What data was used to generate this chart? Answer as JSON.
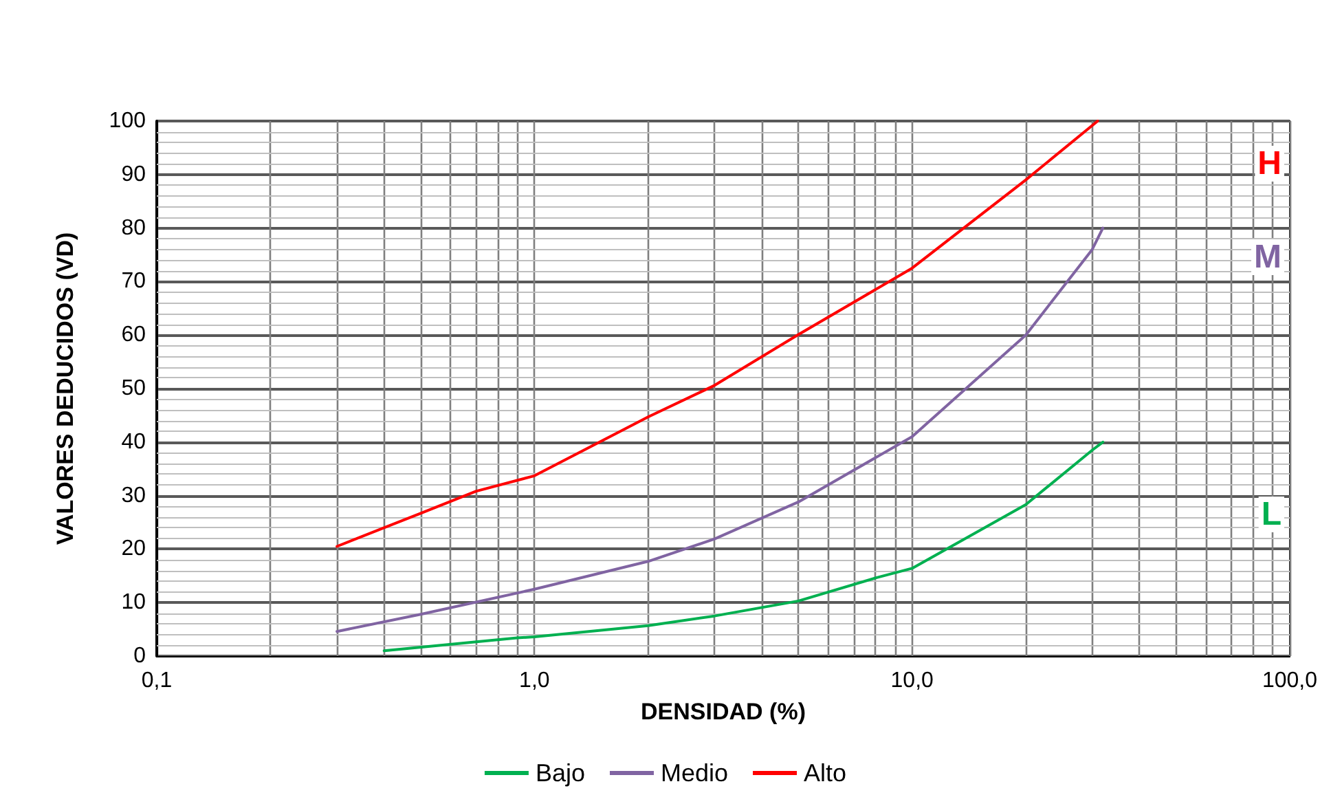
{
  "chart_data": {
    "type": "line",
    "xlabel": "DENSIDAD (%)",
    "ylabel": "VALORES DEDUCIDOS (VD)",
    "log": "x",
    "grid": true,
    "legend": "bottom",
    "marker": "none",
    "line_style": "solid",
    "xlim": [
      0.1,
      100
    ],
    "ylim": [
      0,
      100
    ],
    "xticks": [
      {
        "value": 0.1,
        "label": "0,1"
      },
      {
        "value": 0.2,
        "label": null
      },
      {
        "value": 0.3,
        "label": null
      },
      {
        "value": 0.4,
        "label": null
      },
      {
        "value": 0.5,
        "label": null
      },
      {
        "value": 0.6,
        "label": null
      },
      {
        "value": 0.7,
        "label": null
      },
      {
        "value": 0.8,
        "label": null
      },
      {
        "value": 0.9,
        "label": null
      },
      {
        "value": 1,
        "label": "1,0"
      },
      {
        "value": 2,
        "label": null
      },
      {
        "value": 3,
        "label": null
      },
      {
        "value": 4,
        "label": null
      },
      {
        "value": 5,
        "label": null
      },
      {
        "value": 6,
        "label": null
      },
      {
        "value": 7,
        "label": null
      },
      {
        "value": 8,
        "label": null
      },
      {
        "value": 9,
        "label": null
      },
      {
        "value": 10,
        "label": "10,0"
      },
      {
        "value": 20,
        "label": null
      },
      {
        "value": 30,
        "label": null
      },
      {
        "value": 40,
        "label": null
      },
      {
        "value": 50,
        "label": null
      },
      {
        "value": 60,
        "label": null
      },
      {
        "value": 70,
        "label": null
      },
      {
        "value": 80,
        "label": null
      },
      {
        "value": 90,
        "label": null
      },
      {
        "value": 100,
        "label": "100,0"
      }
    ],
    "yticks": [
      0,
      10,
      20,
      30,
      40,
      50,
      60,
      70,
      80,
      90,
      100
    ],
    "series": [
      {
        "name": "Bajo",
        "color": "#00b050",
        "x": [
          0.4,
          0.9,
          1,
          2,
          3,
          5,
          8,
          10,
          20,
          30,
          32
        ],
        "values": [
          1,
          3.4,
          3.6,
          5.7,
          7.5,
          10.3,
          14.6,
          16.4,
          28.3,
          38.5,
          40
        ]
      },
      {
        "name": "Medio",
        "color": "#8064a2",
        "x": [
          0.3,
          0.5,
          1,
          2,
          3,
          5,
          10,
          20,
          30,
          32
        ],
        "values": [
          4.6,
          7.8,
          12.5,
          17.7,
          21.9,
          28.8,
          41,
          60,
          76,
          80
        ]
      },
      {
        "name": "Alto",
        "color": "#ff0000",
        "x": [
          0.3,
          0.5,
          0.7,
          1,
          2,
          3,
          5,
          10,
          20,
          31
        ],
        "values": [
          20.5,
          26.7,
          30.8,
          33.7,
          44.7,
          50.6,
          60.1,
          72.5,
          89,
          100
        ]
      }
    ],
    "annotations": [
      "H",
      "M",
      "L"
    ]
  }
}
